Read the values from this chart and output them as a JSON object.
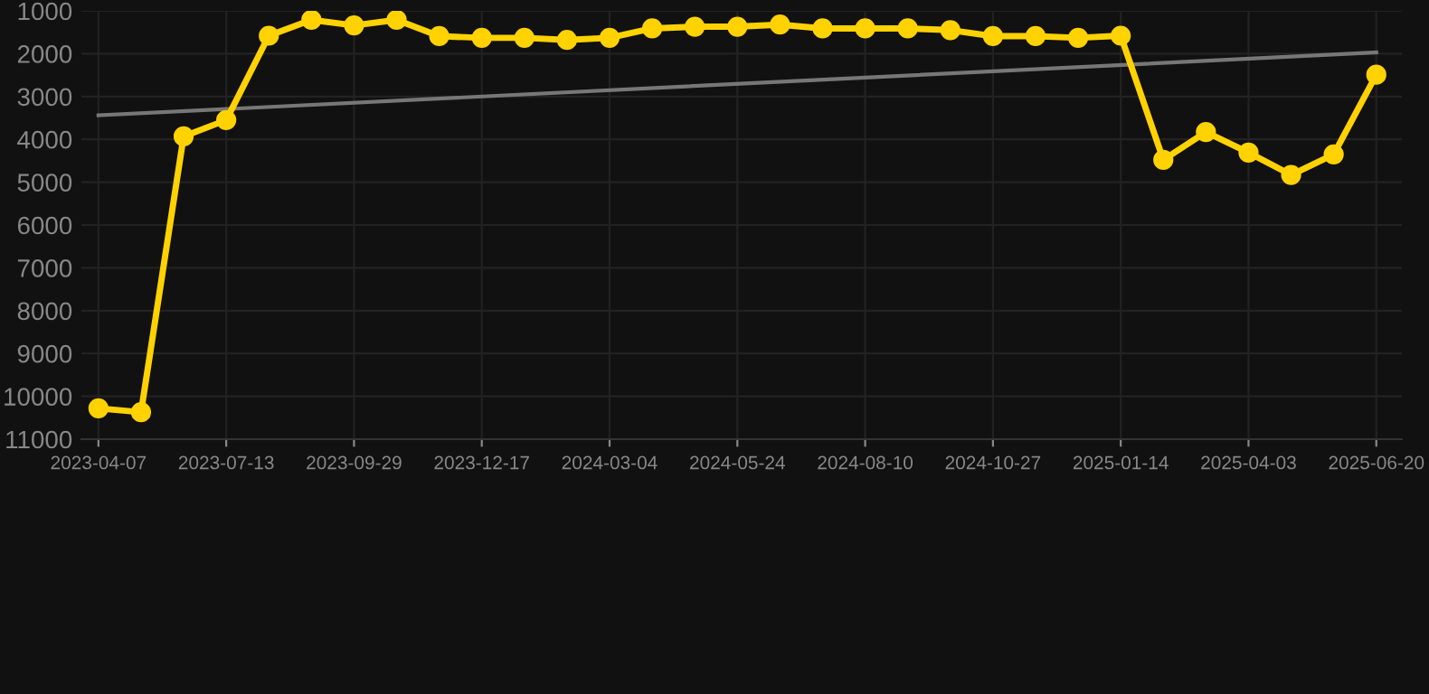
{
  "chart_data": {
    "type": "line",
    "categories": [
      "2023-04-07",
      null,
      null,
      "2023-07-13",
      null,
      null,
      "2023-09-29",
      null,
      null,
      "2023-12-17",
      null,
      null,
      "2024-03-04",
      null,
      null,
      "2024-05-24",
      null,
      null,
      "2024-08-10",
      null,
      null,
      "2024-10-27",
      null,
      null,
      "2025-01-14",
      null,
      null,
      "2025-04-03",
      null,
      null,
      "2025-06-20"
    ],
    "series": [
      {
        "color": "#ffd200",
        "marker": "circle",
        "values": [
          10280,
          10370,
          3930,
          3550,
          1580,
          1210,
          1340,
          1210,
          1590,
          1630,
          1630,
          1680,
          1630,
          1410,
          1370,
          1370,
          1320,
          1410,
          1410,
          1410,
          1450,
          1590,
          1590,
          1630,
          1580,
          4480,
          3830,
          4310,
          4830,
          4350,
          2490
        ]
      },
      {
        "type": "line",
        "color": "#777777",
        "marker": "none",
        "values": [
          3440,
          null,
          null,
          null,
          null,
          null,
          null,
          null,
          null,
          null,
          null,
          null,
          null,
          null,
          null,
          null,
          null,
          null,
          null,
          null,
          null,
          null,
          null,
          null,
          null,
          null,
          null,
          null,
          null,
          null,
          1970
        ]
      }
    ],
    "ylim": [
      11000,
      1000
    ],
    "yticks": [
      1000,
      2000,
      3000,
      4000,
      5000,
      6000,
      7000,
      8000,
      9000,
      10000,
      11000
    ],
    "grid": true,
    "legend": false
  }
}
